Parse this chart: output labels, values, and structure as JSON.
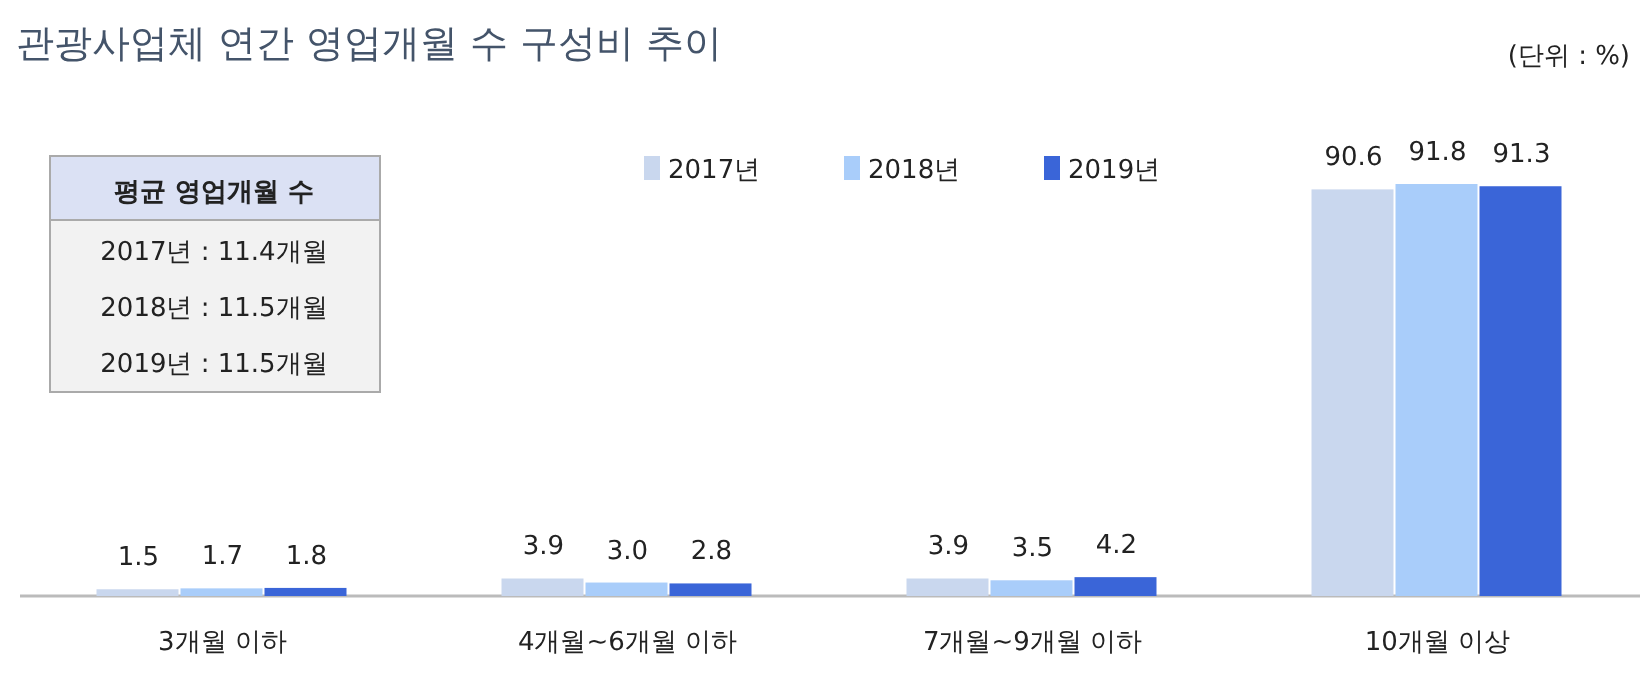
{
  "chart_data": {
    "type": "bar",
    "title": "관광사업체 연간 영업개월 수 구성비 추이",
    "categories": [
      "3개월 이하",
      "4개월~6개월 이하",
      "7개월~9개월 이하",
      "10개월 이상"
    ],
    "series": [
      {
        "name": "2017년",
        "color": "#c9d7ee",
        "values": [
          1.5,
          3.9,
          3.9,
          90.6
        ]
      },
      {
        "name": "2018년",
        "color": "#a9cdfa",
        "values": [
          1.7,
          3.0,
          3.5,
          91.8
        ],
        "value_labels": [
          "1.7",
          "3.0",
          "3.5",
          "91.8"
        ]
      },
      {
        "name": "2019년",
        "color": "#3a65d8",
        "values": [
          1.8,
          2.8,
          4.2,
          91.3
        ]
      }
    ],
    "data_labels": true,
    "legend": "top",
    "annotations": [
      "(단위 : %)",
      "평균 영업개월 수",
      "2017년 : 11.4개월",
      "2018년 : 11.5개월",
      "2019년 : 11.5개월"
    ]
  }
}
